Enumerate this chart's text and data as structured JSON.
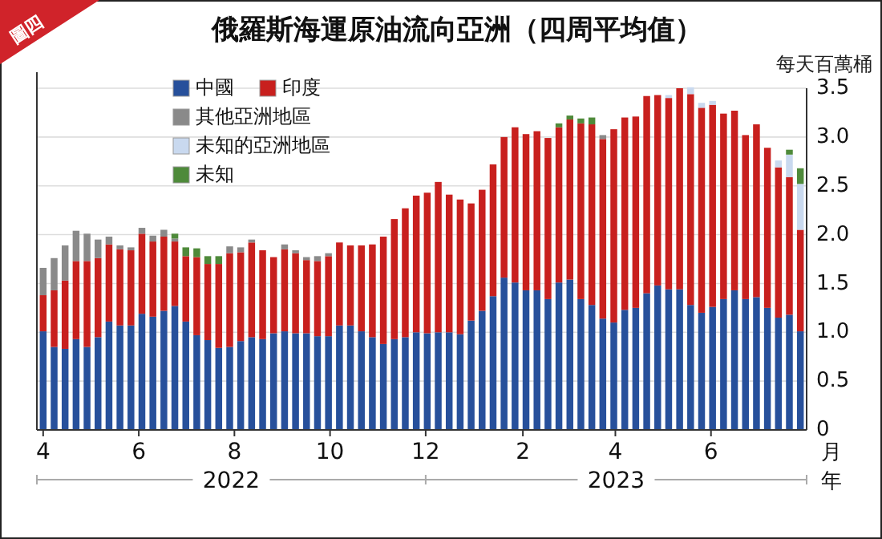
{
  "chart_data": {
    "type": "bar",
    "stacked": true,
    "title": "俄羅斯海運原油流向亞洲（四周平均值）",
    "ylabel": "每天百萬桶",
    "xlabel": "月",
    "annotations": [
      "圖四",
      "2022",
      "2023",
      "年"
    ],
    "x": [
      "2022-04-01",
      "2022-04-08",
      "2022-04-15",
      "2022-04-22",
      "2022-04-29",
      "2022-05-06",
      "2022-05-13",
      "2022-05-20",
      "2022-05-27",
      "2022-06-03",
      "2022-06-10",
      "2022-06-17",
      "2022-06-24",
      "2022-07-01",
      "2022-07-08",
      "2022-07-15",
      "2022-07-22",
      "2022-07-29",
      "2022-08-05",
      "2022-08-12",
      "2022-08-19",
      "2022-08-26",
      "2022-09-02",
      "2022-09-09",
      "2022-09-16",
      "2022-09-23",
      "2022-09-30",
      "2022-10-07",
      "2022-10-14",
      "2022-10-21",
      "2022-10-28",
      "2022-11-04",
      "2022-11-11",
      "2022-11-18",
      "2022-11-25",
      "2022-12-02",
      "2022-12-09",
      "2022-12-16",
      "2022-12-23",
      "2022-12-30",
      "2023-01-06",
      "2023-01-13",
      "2023-01-20",
      "2023-01-27",
      "2023-02-03",
      "2023-02-10",
      "2023-02-17",
      "2023-02-24",
      "2023-03-03",
      "2023-03-10",
      "2023-03-17",
      "2023-03-24",
      "2023-03-31",
      "2023-04-07",
      "2023-04-14",
      "2023-04-21",
      "2023-04-28",
      "2023-05-05",
      "2023-05-12",
      "2023-05-19",
      "2023-05-26",
      "2023-06-02",
      "2023-06-09",
      "2023-06-16",
      "2023-06-23",
      "2023-06-30",
      "2023-07-07",
      "2023-07-14",
      "2023-07-21",
      "2023-07-28"
    ],
    "xlim": [
      "2022-03-28",
      "2023-08-01"
    ],
    "xticks": [
      {
        "value": "2022-04-01",
        "label": "4"
      },
      {
        "value": "2022-06-01",
        "label": "6"
      },
      {
        "value": "2022-08-01",
        "label": "8"
      },
      {
        "value": "2022-10-01",
        "label": "10"
      },
      {
        "value": "2022-12-01",
        "label": "12"
      },
      {
        "value": "2023-02-01",
        "label": "2"
      },
      {
        "value": "2023-04-01",
        "label": "4"
      },
      {
        "value": "2023-06-01",
        "label": "6"
      }
    ],
    "ylim": [
      0,
      3.5
    ],
    "yticks": [
      0,
      {
        "value": 0.5,
        "label": "0.5"
      },
      {
        "value": 1,
        "label": "1.0"
      },
      {
        "value": 1.5,
        "label": "1.5"
      },
      {
        "value": 2,
        "label": "2.0"
      },
      {
        "value": 2.5,
        "label": "2.5"
      },
      {
        "value": 3,
        "label": "3.0"
      },
      {
        "value": 3.5,
        "label": "3.5"
      }
    ],
    "grid": "y",
    "legend": "top left",
    "series": [
      {
        "name": "中國",
        "color": "#27509b",
        "values": [
          1.01,
          0.85,
          0.83,
          0.93,
          0.85,
          0.95,
          1.11,
          1.07,
          1.07,
          1.19,
          1.16,
          1.22,
          1.27,
          1.11,
          0.97,
          0.92,
          0.84,
          0.85,
          0.91,
          0.95,
          0.93,
          0.99,
          1.01,
          0.99,
          0.99,
          0.96,
          0.96,
          1.07,
          1.07,
          1.01,
          0.95,
          0.88,
          0.93,
          0.95,
          1.0,
          0.99,
          1.0,
          1.0,
          0.98,
          1.12,
          1.22,
          1.37,
          1.56,
          1.51,
          1.43,
          1.43,
          1.34,
          1.51,
          1.54,
          1.34,
          1.28,
          1.14,
          1.1,
          1.23,
          1.25,
          1.4,
          1.48,
          1.44,
          1.44,
          1.28,
          1.2,
          1.26,
          1.34,
          1.43,
          1.34,
          1.36,
          1.25,
          1.15,
          1.18,
          1.01
        ]
      },
      {
        "name": "印度",
        "color": "#c8201e",
        "values": [
          0.37,
          0.58,
          0.7,
          0.8,
          0.88,
          0.81,
          0.79,
          0.78,
          0.77,
          0.82,
          0.77,
          0.76,
          0.66,
          0.67,
          0.8,
          0.78,
          0.86,
          0.96,
          0.91,
          0.97,
          0.91,
          0.78,
          0.84,
          0.82,
          0.75,
          0.77,
          0.82,
          0.85,
          0.82,
          0.88,
          0.95,
          1.1,
          1.23,
          1.32,
          1.4,
          1.44,
          1.54,
          1.41,
          1.38,
          1.2,
          1.24,
          1.35,
          1.44,
          1.59,
          1.6,
          1.63,
          1.65,
          1.59,
          1.64,
          1.8,
          1.85,
          1.84,
          1.98,
          1.97,
          1.96,
          2.02,
          1.95,
          1.96,
          2.06,
          2.16,
          2.1,
          2.07,
          1.9,
          1.84,
          1.68,
          1.77,
          1.64,
          1.54,
          1.41,
          1.04
        ]
      },
      {
        "name": "其他亞洲地區",
        "color": "#8a8a8a",
        "values": [
          0.28,
          0.33,
          0.36,
          0.31,
          0.28,
          0.19,
          0.08,
          0.04,
          0.03,
          0.06,
          0.06,
          0.07,
          0.03,
          null,
          null,
          null,
          null,
          0.07,
          0.05,
          0.03,
          null,
          null,
          0.05,
          0.03,
          0.03,
          0.05,
          0.03,
          null,
          null,
          null,
          null,
          null,
          null,
          null,
          null,
          null,
          null,
          null,
          null,
          null,
          null,
          null,
          null,
          null,
          null,
          null,
          null,
          null,
          null,
          null,
          null,
          0.04,
          null,
          null,
          null,
          null,
          null,
          null,
          null,
          null,
          null,
          null,
          null,
          null,
          null,
          null,
          null,
          null,
          null,
          null
        ]
      },
      {
        "name": "未知的亞洲地區",
        "color": "#c9d9ef",
        "values": [
          null,
          null,
          null,
          null,
          null,
          null,
          null,
          null,
          null,
          null,
          null,
          null,
          null,
          null,
          null,
          null,
          null,
          null,
          null,
          null,
          null,
          null,
          null,
          null,
          null,
          null,
          null,
          null,
          null,
          null,
          null,
          null,
          null,
          null,
          null,
          null,
          null,
          null,
          null,
          null,
          null,
          null,
          null,
          null,
          null,
          null,
          null,
          null,
          null,
          null,
          null,
          null,
          null,
          null,
          null,
          null,
          null,
          0.03,
          null,
          0.07,
          0.05,
          0.04,
          null,
          null,
          null,
          null,
          null,
          0.07,
          0.23,
          0.47
        ]
      },
      {
        "name": "未知",
        "color": "#4e8a3a",
        "values": [
          null,
          null,
          null,
          null,
          null,
          null,
          null,
          null,
          null,
          null,
          null,
          null,
          0.05,
          0.09,
          0.09,
          0.08,
          0.08,
          null,
          null,
          null,
          null,
          null,
          null,
          null,
          null,
          null,
          null,
          null,
          null,
          null,
          null,
          null,
          null,
          null,
          null,
          null,
          null,
          null,
          null,
          null,
          null,
          null,
          null,
          null,
          null,
          null,
          null,
          0.04,
          0.04,
          0.05,
          0.07,
          null,
          null,
          null,
          null,
          null,
          null,
          null,
          null,
          null,
          null,
          null,
          null,
          null,
          null,
          null,
          null,
          null,
          0.05,
          0.16
        ]
      }
    ]
  }
}
